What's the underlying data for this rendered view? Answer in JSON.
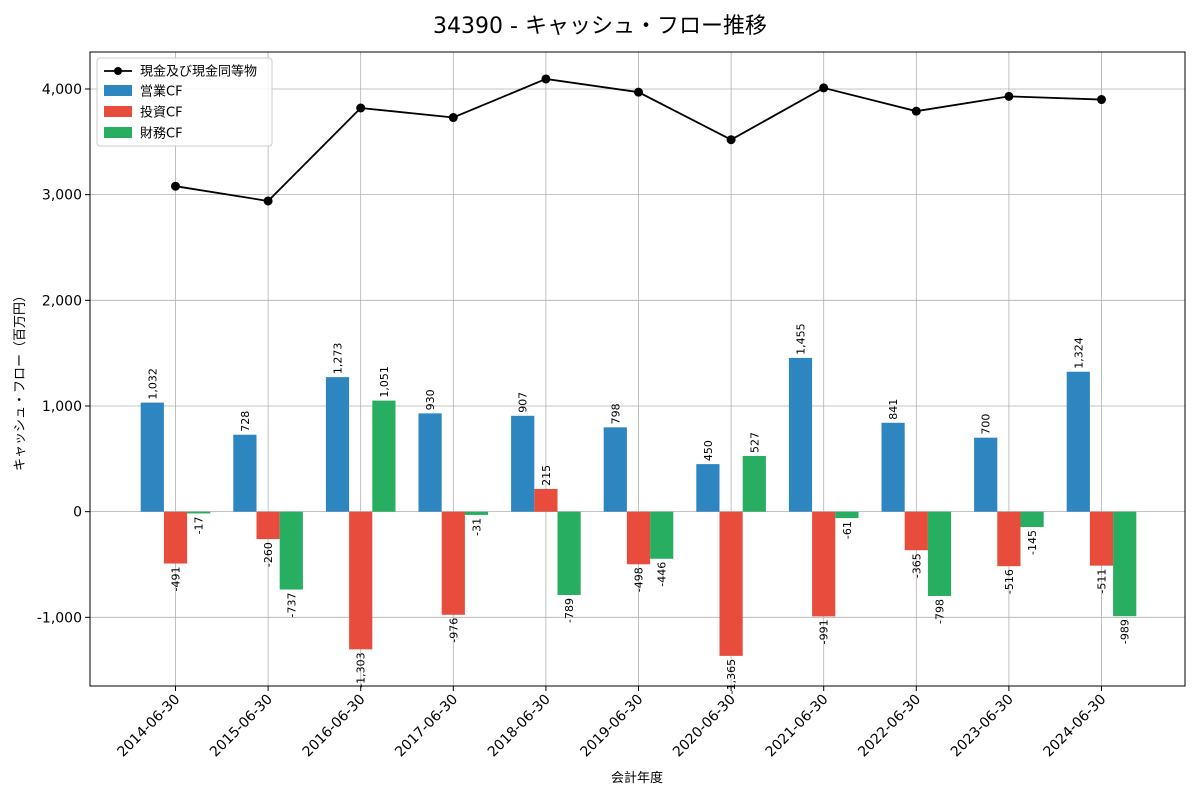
{
  "chart_data": {
    "type": "bar",
    "title": "34390 - キャッシュ・フロー推移",
    "xlabel": "会計年度",
    "ylabel": "キャッシュ・フロー（百万円）",
    "ylim": [
      -1650,
      4350
    ],
    "yticks": [
      -1000,
      0,
      1000,
      2000,
      3000,
      4000
    ],
    "ytick_labels": [
      "-1,000",
      "0",
      "1,000",
      "2,000",
      "3,000",
      "4,000"
    ],
    "grid": true,
    "legend_position": "top-left",
    "categories": [
      "2014-06-30",
      "2015-06-30",
      "2016-06-30",
      "2017-06-30",
      "2018-06-30",
      "2019-06-30",
      "2020-06-30",
      "2021-06-30",
      "2022-06-30",
      "2023-06-30",
      "2024-06-30"
    ],
    "series": [
      {
        "name": "営業CF",
        "kind": "bar",
        "color": "#2e86c1",
        "values": [
          1032,
          728,
          1273,
          930,
          907,
          798,
          450,
          1455,
          841,
          700,
          1324
        ],
        "labels": [
          "1,032",
          "728",
          "1,273",
          "930",
          "907",
          "798",
          "450",
          "1,455",
          "841",
          "700",
          "1,324"
        ]
      },
      {
        "name": "投資CF",
        "kind": "bar",
        "color": "#e74c3c",
        "values": [
          -491,
          -260,
          -1303,
          -976,
          215,
          -498,
          -1365,
          -991,
          -365,
          -516,
          -511
        ],
        "labels": [
          "-491",
          "-260",
          "-1,303",
          "-976",
          "215",
          "-498",
          "-1,365",
          "-991",
          "-365",
          "-516",
          "-511"
        ]
      },
      {
        "name": "財務CF",
        "kind": "bar",
        "color": "#27ae60",
        "values": [
          -17,
          -737,
          1051,
          -31,
          -789,
          -446,
          527,
          -61,
          -798,
          -145,
          -989
        ],
        "labels": [
          "-17",
          "-737",
          "1,051",
          "-31",
          "-789",
          "-446",
          "527",
          "-61",
          "-798",
          "-145",
          "-989"
        ]
      }
    ],
    "line": {
      "name": "現金及び現金同等物",
      "color": "#000000",
      "values": [
        3080,
        2940,
        3820,
        3730,
        4095,
        3970,
        3520,
        4010,
        3790,
        3930,
        3900
      ]
    }
  }
}
